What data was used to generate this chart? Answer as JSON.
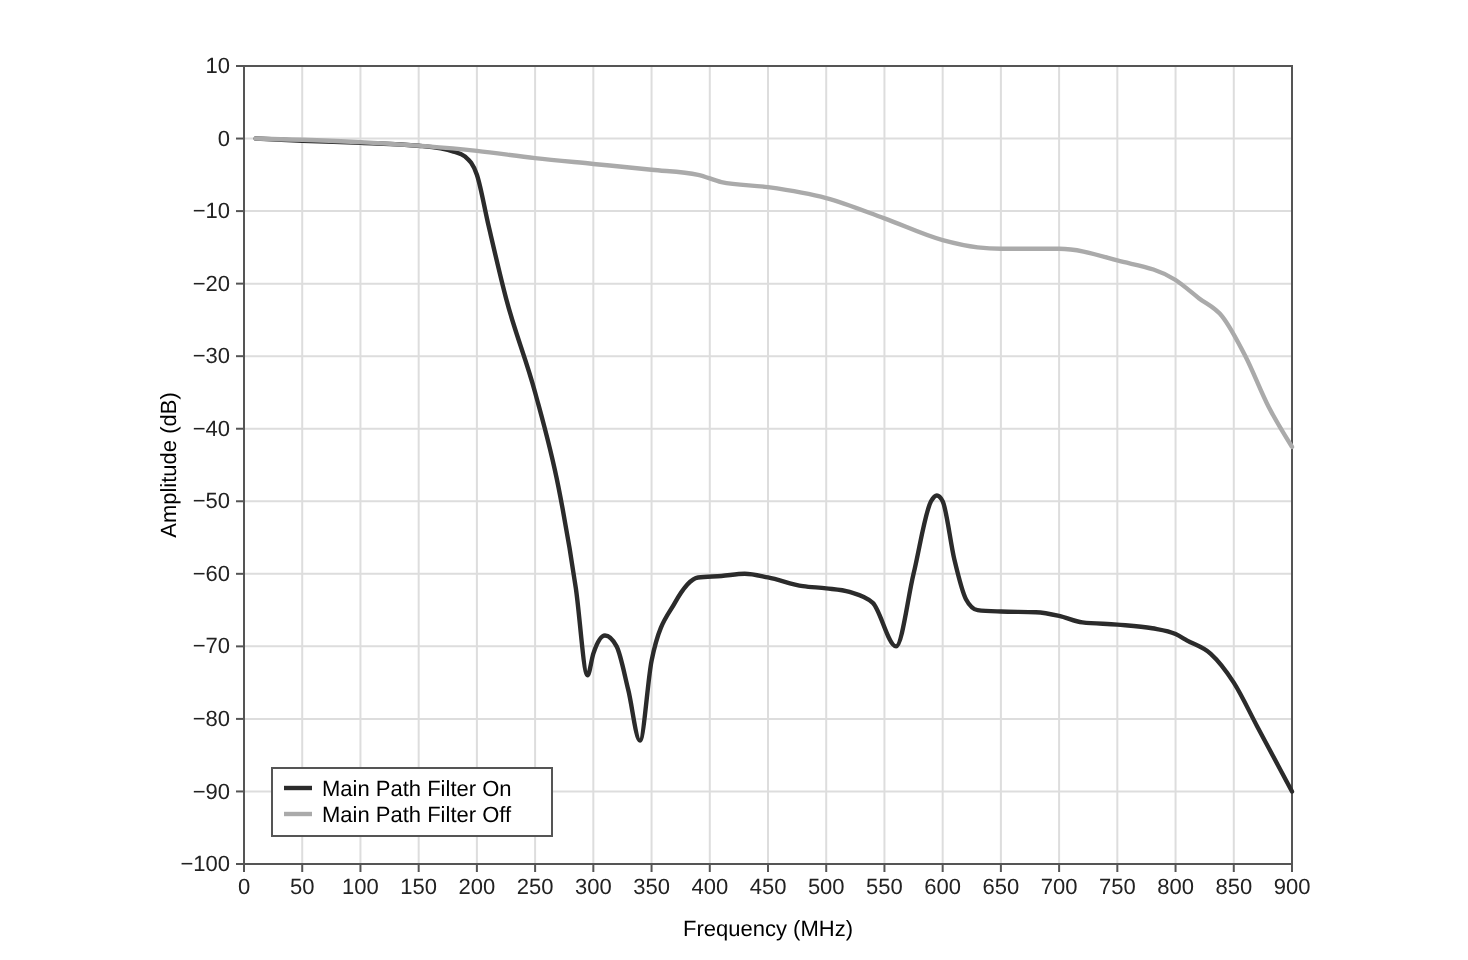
{
  "chart_data": {
    "type": "line",
    "xlabel": "Frequency (MHz)",
    "ylabel": "Amplitude (dB)",
    "xlim": [
      0,
      900
    ],
    "xticks": [
      0,
      50,
      100,
      150,
      200,
      250,
      300,
      350,
      400,
      450,
      500,
      550,
      600,
      650,
      700,
      750,
      800,
      850,
      900
    ],
    "ylim": [
      -100,
      10
    ],
    "yticks": [
      -100,
      -90,
      -80,
      -70,
      -60,
      -50,
      -40,
      -30,
      -20,
      -10,
      0,
      10
    ],
    "grid": true,
    "legend": "bottom left",
    "marker": "none",
    "line_style": "solid",
    "series": [
      {
        "name": "Main Path Filter On",
        "color": "#2b2b2b",
        "x": [
          10,
          50,
          100,
          150,
          180,
          190,
          200,
          210,
          225,
          250,
          270,
          285,
          295,
          300,
          310,
          320,
          330,
          340,
          350,
          370,
          390,
          410,
          430,
          450,
          480,
          500,
          520,
          540,
          560,
          575,
          590,
          595,
          600,
          610,
          620,
          630,
          650,
          680,
          700,
          720,
          750,
          780,
          800,
          810,
          830,
          850,
          870,
          900
        ],
        "values": [
          0,
          -0.3,
          -0.6,
          -1,
          -1.8,
          -2.5,
          -5,
          -12,
          -22,
          -35,
          -48,
          -62,
          -74,
          -71,
          -68.5,
          -70,
          -76,
          -83,
          -72,
          -64,
          -60.5,
          -60.3,
          -60,
          -60.5,
          -61.7,
          -62,
          -62.5,
          -64,
          -70,
          -60,
          -50,
          -49.2,
          -50,
          -58,
          -63.5,
          -65,
          -65.2,
          -65.3,
          -65.8,
          -66.7,
          -67,
          -67.5,
          -68.3,
          -69.2,
          -71,
          -75,
          -81,
          -90
        ]
      },
      {
        "name": "Main Path Filter Off",
        "color": "#aaaaaa",
        "x": [
          10,
          100,
          200,
          250,
          300,
          350,
          390,
          410,
          450,
          500,
          550,
          600,
          630,
          650,
          700,
          750,
          800,
          820,
          840,
          860,
          880,
          900
        ],
        "values": [
          0,
          -0.5,
          -1.7,
          -2.7,
          -3.5,
          -4.3,
          -5,
          -6,
          -6.7,
          -8.2,
          -11,
          -14,
          -15,
          -15.2,
          -15.2,
          -16.8,
          -19.5,
          -22,
          -24.5,
          -30,
          -37,
          -42.5
        ]
      }
    ]
  }
}
